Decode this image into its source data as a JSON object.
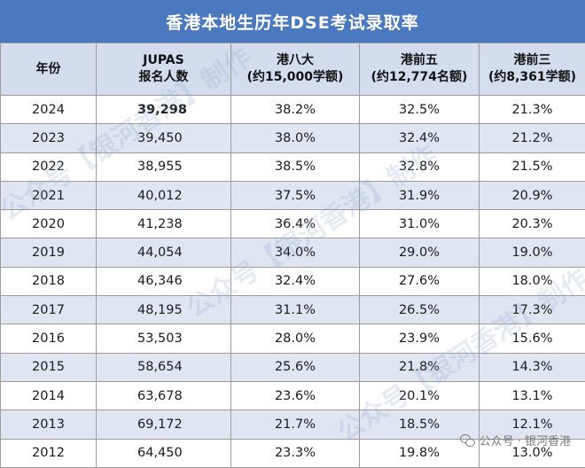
{
  "title": "香港本地生历年DSE考试录取率",
  "headers": {
    "year": "年份",
    "jupas_line1": "JUPAS",
    "jupas_line2": "报名人数",
    "big8_line1": "港八大",
    "big8_line2": "(约15,000学额)",
    "top5_line1": "港前五",
    "top5_line2": "(约12,774名额)",
    "top3_line1": "港前三",
    "top3_line2": "(约8,361学额)"
  },
  "rows": [
    {
      "year": "2024",
      "jupas": "39,298",
      "big8": "38.2%",
      "top5": "32.5%",
      "top3": "21.3%"
    },
    {
      "year": "2023",
      "jupas": "39,450",
      "big8": "38.0%",
      "top5": "32.4%",
      "top3": "21.2%"
    },
    {
      "year": "2022",
      "jupas": "38,955",
      "big8": "38.5%",
      "top5": "32.8%",
      "top3": "21.5%"
    },
    {
      "year": "2021",
      "jupas": "40,012",
      "big8": "37.5%",
      "top5": "31.9%",
      "top3": "20.9%"
    },
    {
      "year": "2020",
      "jupas": "41,238",
      "big8": "36.4%",
      "top5": "31.0%",
      "top3": "20.3%"
    },
    {
      "year": "2019",
      "jupas": "44,054",
      "big8": "34.0%",
      "top5": "29.0%",
      "top3": "19.0%"
    },
    {
      "year": "2018",
      "jupas": "46,346",
      "big8": "32.4%",
      "top5": "27.6%",
      "top3": "18.0%"
    },
    {
      "year": "2017",
      "jupas": "48,195",
      "big8": "31.1%",
      "top5": "26.5%",
      "top3": "17.3%"
    },
    {
      "year": "2016",
      "jupas": "53,503",
      "big8": "28.0%",
      "top5": "23.9%",
      "top3": "15.6%"
    },
    {
      "year": "2015",
      "jupas": "58,654",
      "big8": "25.6%",
      "top5": "21.8%",
      "top3": "14.3%"
    },
    {
      "year": "2014",
      "jupas": "63,678",
      "big8": "23.6%",
      "top5": "20.1%",
      "top3": "13.1%"
    },
    {
      "year": "2013",
      "jupas": "69,172",
      "big8": "21.7%",
      "top5": "18.5%",
      "top3": "12.1%"
    },
    {
      "year": "2012",
      "jupas": "64,450",
      "big8": "23.3%",
      "top5": "19.8%",
      "top3": "13.0%"
    }
  ],
  "watermark": {
    "diagonal": "公众号【银河香港】制作",
    "footer": "公众号 · 银河香港",
    "footer_icon": "wechat-icon"
  },
  "colors": {
    "title_bg": "#4b79c0",
    "header_bg": "#d3dded",
    "stripe_bg": "#dfe6f2"
  }
}
